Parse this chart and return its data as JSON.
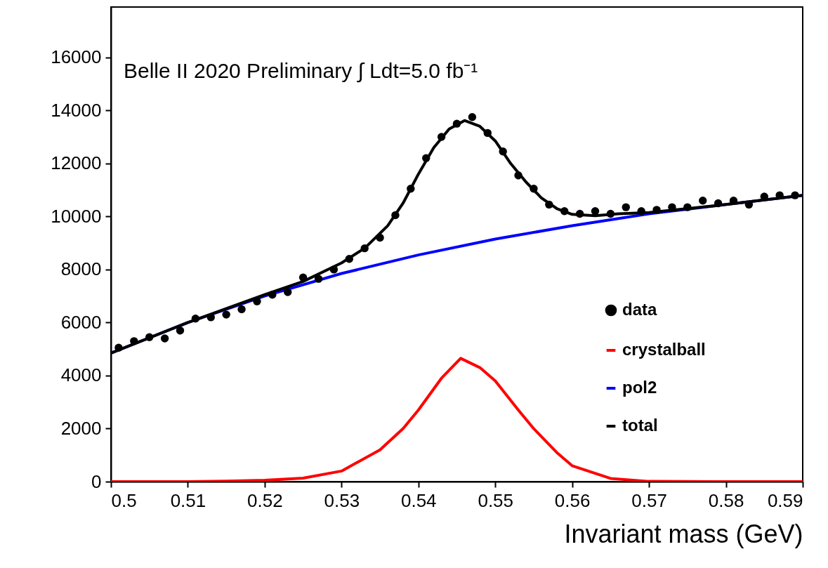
{
  "chart_data": {
    "type": "line",
    "xlabel": "Invariant mass (GeV)",
    "annotations": [
      "Belle II 2020 Preliminary ∫ Ldt=5.0 fb⁻¹"
    ],
    "xlim": [
      0.5,
      0.59
    ],
    "xticks": [
      0.5,
      0.51,
      0.52,
      0.53,
      0.54,
      0.55,
      0.56,
      0.57,
      0.58,
      0.59
    ],
    "ylim": [
      0,
      17900
    ],
    "yticks": [
      0,
      2000,
      4000,
      6000,
      8000,
      10000,
      12000,
      14000,
      16000
    ],
    "grid": false,
    "legend": "bottom right",
    "series": [
      {
        "name": "data",
        "type": "scatter",
        "marker": "circle",
        "color": "#000000",
        "x": [
          0.501,
          0.503,
          0.505,
          0.507,
          0.509,
          0.511,
          0.513,
          0.515,
          0.517,
          0.519,
          0.521,
          0.523,
          0.525,
          0.527,
          0.529,
          0.531,
          0.533,
          0.535,
          0.537,
          0.539,
          0.541,
          0.543,
          0.545,
          0.547,
          0.549,
          0.551,
          0.553,
          0.555,
          0.557,
          0.559,
          0.561,
          0.563,
          0.565,
          0.567,
          0.569,
          0.571,
          0.573,
          0.575,
          0.577,
          0.579,
          0.581,
          0.583,
          0.585,
          0.587,
          0.589
        ],
        "values": [
          5050,
          5300,
          5450,
          5400,
          5700,
          6150,
          6200,
          6300,
          6500,
          6800,
          7050,
          7150,
          7700,
          7650,
          8000,
          8400,
          8800,
          9200,
          10050,
          11050,
          12200,
          13000,
          13500,
          13750,
          13150,
          12450,
          11550,
          11050,
          10450,
          10200,
          10100,
          10200,
          10100,
          10350,
          10200,
          10250,
          10350,
          10350,
          10600,
          10500,
          10600,
          10450,
          10750,
          10800,
          10800
        ]
      },
      {
        "name": "crystalball",
        "color": "#ff0000",
        "x": [
          0.5,
          0.51,
          0.515,
          0.52,
          0.525,
          0.53,
          0.535,
          0.538,
          0.54,
          0.543,
          0.5455,
          0.548,
          0.55,
          0.553,
          0.555,
          0.558,
          0.56,
          0.565,
          0.57,
          0.58,
          0.59
        ],
        "values": [
          0,
          0,
          20,
          50,
          130,
          400,
          1200,
          2000,
          2700,
          3900,
          4650,
          4300,
          3800,
          2700,
          2000,
          1100,
          600,
          120,
          10,
          0,
          0
        ]
      },
      {
        "name": "pol2",
        "color": "#0000ff",
        "x": [
          0.5,
          0.51,
          0.52,
          0.53,
          0.54,
          0.55,
          0.56,
          0.57,
          0.58,
          0.59
        ],
        "values": [
          4850,
          6000,
          7000,
          7850,
          8550,
          9150,
          9650,
          10100,
          10450,
          10800
        ]
      },
      {
        "name": "total",
        "color": "#000000",
        "x": [
          0.5,
          0.51,
          0.52,
          0.525,
          0.53,
          0.533,
          0.536,
          0.538,
          0.54,
          0.542,
          0.544,
          0.546,
          0.548,
          0.55,
          0.552,
          0.554,
          0.556,
          0.558,
          0.56,
          0.563,
          0.566,
          0.57,
          0.58,
          0.59
        ],
        "values": [
          4850,
          6000,
          7050,
          7550,
          8250,
          8800,
          9650,
          10500,
          11600,
          12600,
          13300,
          13620,
          13400,
          12850,
          12000,
          11300,
          10700,
          10300,
          10080,
          10030,
          10100,
          10150,
          10450,
          10800
        ]
      }
    ]
  }
}
